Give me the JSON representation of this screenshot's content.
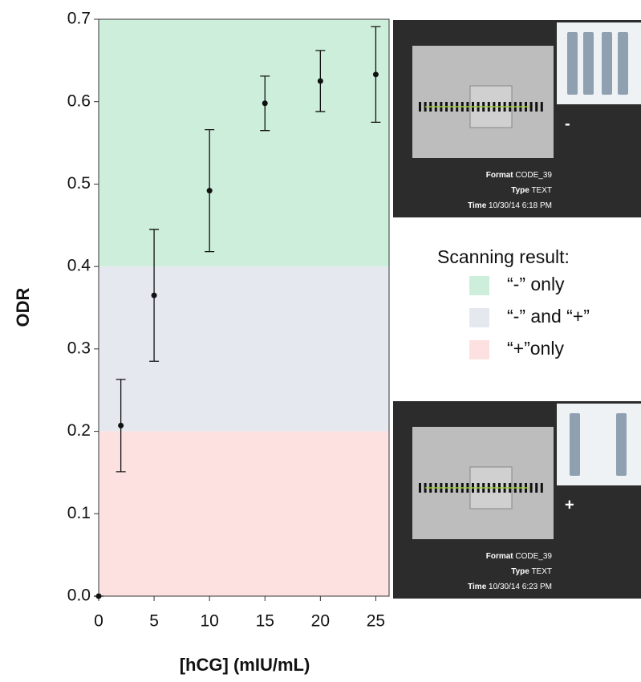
{
  "chart_data": {
    "type": "errorbar",
    "x_label": "[hCG] (mIU/mL)",
    "y_label": "ODR",
    "xlim": [
      0,
      26.2
    ],
    "ylim": [
      0,
      0.7
    ],
    "xticks": [
      0,
      5,
      10,
      15,
      20,
      25
    ],
    "yticks": [
      {
        "value": 0,
        "label": "0.0"
      },
      0.1,
      0.2,
      0.3,
      0.4,
      0.5,
      0.6,
      0.7
    ],
    "series": [
      {
        "color": "#111111",
        "x": [
          0,
          2,
          5,
          10,
          15,
          20,
          25
        ],
        "values": [
          0,
          0.207,
          0.365,
          0.492,
          0.598,
          0.625,
          0.633
        ],
        "errors": [
          0,
          0.056,
          0.08,
          0.074,
          0.033,
          0.037,
          0.058
        ]
      }
    ],
    "legend_title": "Scanning result:",
    "regions": [
      {
        "name": "“-” only",
        "from": 0.4,
        "to": 0.7,
        "color": "#cdeedb"
      },
      {
        "name": "“-” and “+”",
        "from": 0.2,
        "to": 0.4,
        "color": "#e5e9ef"
      },
      {
        "name": "“+”only",
        "from": 0,
        "to": 0.2,
        "color": "#fde1e1"
      }
    ]
  },
  "insets": [
    {
      "mark": "-",
      "fields": [
        [
          "Format",
          "CODE_39"
        ],
        [
          "Type",
          "TEXT"
        ],
        [
          "Time",
          "10/30/14 6:18 PM"
        ]
      ]
    },
    {
      "mark": "+",
      "fields": [
        [
          "Format",
          "CODE_39"
        ],
        [
          "Type",
          "TEXT"
        ],
        [
          "Time",
          "10/30/14 6:23 PM"
        ]
      ]
    }
  ]
}
